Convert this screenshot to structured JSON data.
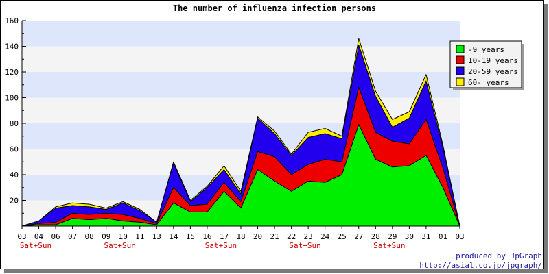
{
  "colors": {
    "band_blue": "#dde6fb",
    "band_grey": "#f4f4f4",
    "weekend_label": "#cc0000",
    "credit_text": "#1a1a9c"
  },
  "footer": {
    "produced_by": "produced by JpGraph",
    "url": "http://asial.co.jp/jpgraph/"
  },
  "chart_data": {
    "type": "area",
    "stacked": true,
    "title": "The number of influenza infection persons",
    "xlabel": "",
    "ylabel": "",
    "ylim": [
      0,
      160
    ],
    "yticks": [
      20,
      40,
      60,
      80,
      100,
      120,
      140,
      160
    ],
    "grid": "alternating horizontal bands",
    "legend_position": "top-right",
    "x": [
      "03",
      "04",
      "06",
      "07",
      "08",
      "09",
      "10",
      "11",
      "13",
      "14",
      "15",
      "16",
      "17",
      "18",
      "20",
      "21",
      "22",
      "23",
      "24",
      "25",
      "27",
      "28",
      "29",
      "30",
      "31",
      "01",
      "03"
    ],
    "weekend_labels": [
      {
        "index": 0,
        "text": "Sat+Sun"
      },
      {
        "index": 5,
        "text": "Sat+Sun"
      },
      {
        "index": 11,
        "text": "Sat+Sun"
      },
      {
        "index": 16,
        "text": "Sat+Sun"
      },
      {
        "index": 21,
        "text": "Sat+Sun"
      }
    ],
    "series": [
      {
        "name": "-9 years",
        "color": "#00ee00",
        "values": [
          0,
          1,
          1,
          6,
          5,
          6,
          4,
          3,
          1,
          18,
          11,
          11,
          27,
          14,
          44,
          35,
          27,
          35,
          34,
          40,
          79,
          52,
          46,
          47,
          55,
          30,
          0
        ]
      },
      {
        "name": "10-19 years",
        "color": "#ee0000",
        "values": [
          0,
          1,
          2,
          4,
          4,
          4,
          5,
          3,
          1,
          12,
          5,
          6,
          7,
          5,
          14,
          19,
          13,
          13,
          18,
          10,
          29,
          21,
          20,
          17,
          28,
          15,
          0
        ]
      },
      {
        "name": "20-59 years",
        "color": "#2200ee",
        "values": [
          0,
          2,
          11,
          6,
          6,
          3,
          9,
          6,
          1,
          19,
          3,
          13,
          10,
          6,
          26,
          18,
          15,
          21,
          20,
          18,
          33,
          28,
          11,
          20,
          30,
          16,
          0
        ]
      },
      {
        "name": "60- years",
        "color": "#ffee00",
        "values": [
          0,
          0,
          1,
          2,
          2,
          1,
          1,
          1,
          0,
          1,
          1,
          1,
          3,
          2,
          1,
          2,
          1,
          4,
          4,
          2,
          5,
          4,
          6,
          5,
          5,
          2,
          0
        ]
      }
    ]
  }
}
